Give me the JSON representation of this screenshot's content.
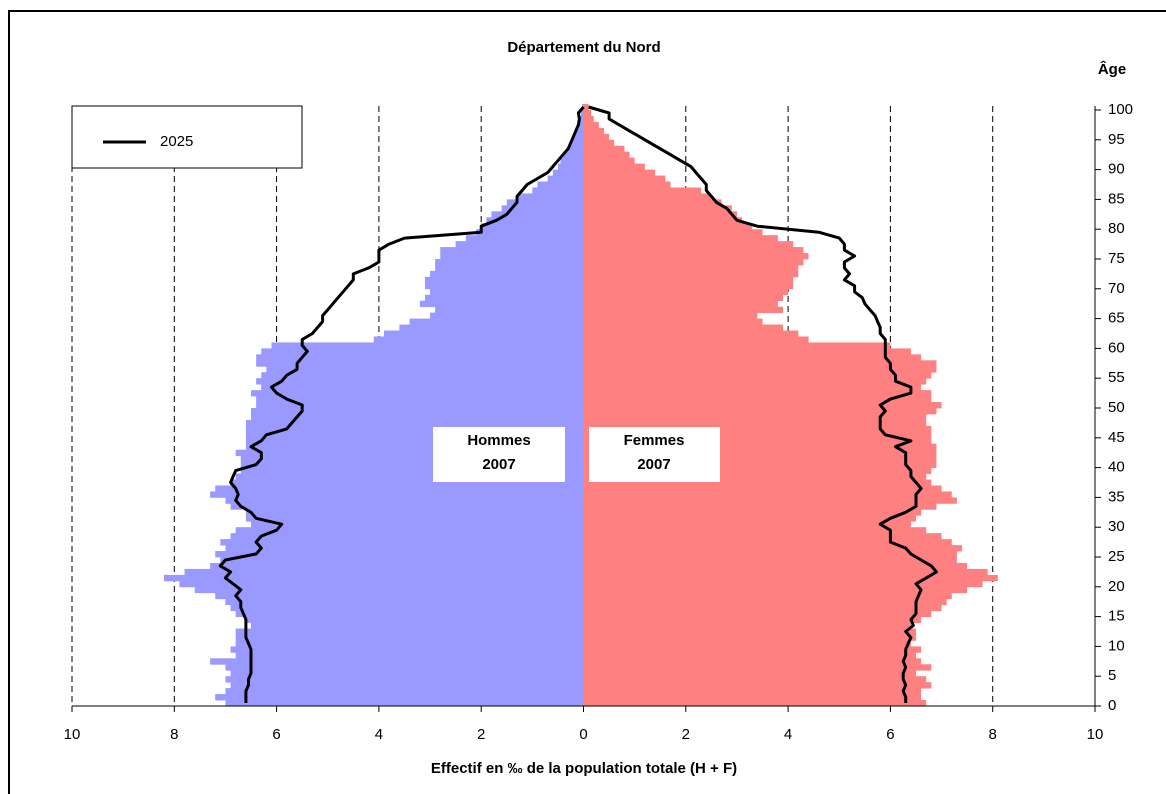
{
  "chart_data": {
    "type": "pyramid",
    "title": "Département du Nord",
    "x_label": "Effectif en ‰ de la population totale (H + F)",
    "y_label": "Âge",
    "xlim": [
      -10,
      10
    ],
    "xticks": [
      {
        "value": -10,
        "label": "10"
      },
      {
        "value": -8,
        "label": "8"
      },
      {
        "value": -6,
        "label": "6"
      },
      {
        "value": -4,
        "label": "4"
      },
      {
        "value": -2,
        "label": "2"
      },
      0,
      2,
      4,
      6,
      8,
      10
    ],
    "ylim": [
      0,
      100
    ],
    "yticks": [
      0,
      5,
      10,
      15,
      20,
      25,
      30,
      35,
      40,
      45,
      50,
      55,
      60,
      65,
      70,
      75,
      80,
      85,
      90,
      95,
      100
    ],
    "grid": true,
    "legend": "top-left",
    "bars": [
      {
        "name": "Hommes",
        "year": "2007",
        "side": "left",
        "color": "#9999ff",
        "values": [
          7.0,
          7.2,
          7.0,
          6.9,
          7.0,
          6.9,
          7.0,
          7.3,
          6.8,
          6.9,
          6.8,
          6.8,
          6.8,
          6.5,
          6.6,
          6.8,
          6.9,
          7.0,
          7.2,
          7.6,
          7.9,
          8.2,
          7.8,
          7.3,
          7.1,
          7.2,
          7.0,
          7.1,
          6.9,
          6.8,
          6.5,
          6.6,
          6.6,
          6.9,
          7.0,
          7.3,
          7.2,
          6.9,
          6.8,
          6.7,
          6.7,
          6.7,
          6.8,
          6.6,
          6.6,
          6.6,
          6.6,
          6.6,
          6.5,
          6.5,
          6.4,
          6.4,
          6.5,
          6.3,
          6.4,
          6.3,
          6.2,
          6.4,
          6.4,
          6.3,
          6.1,
          4.1,
          3.9,
          3.6,
          3.4,
          3.0,
          2.9,
          3.2,
          3.1,
          3.0,
          3.1,
          3.1,
          3.0,
          2.9,
          2.9,
          2.8,
          2.8,
          2.5,
          2.3,
          2.1,
          2.0,
          1.9,
          1.8,
          1.6,
          1.5,
          1.3,
          1.0,
          0.9,
          0.7,
          0.6,
          0.5,
          0.45,
          0.4,
          0.3,
          0.25,
          0.2,
          0.15,
          0.1,
          0.08,
          0.05,
          0.03
        ]
      },
      {
        "name": "Femmes",
        "year": "2007",
        "side": "right",
        "color": "#ff8080",
        "values": [
          6.7,
          6.6,
          6.6,
          6.8,
          6.7,
          6.5,
          6.8,
          6.6,
          6.5,
          6.6,
          6.4,
          6.5,
          6.5,
          6.4,
          6.6,
          6.8,
          7.0,
          7.1,
          7.2,
          7.5,
          7.8,
          8.1,
          7.9,
          7.5,
          7.3,
          7.3,
          7.4,
          7.2,
          7.0,
          6.7,
          6.4,
          6.5,
          6.6,
          6.9,
          7.3,
          7.2,
          7.0,
          6.8,
          6.7,
          6.8,
          6.9,
          6.9,
          6.9,
          6.9,
          6.8,
          6.8,
          6.8,
          6.7,
          6.7,
          6.9,
          7.0,
          6.8,
          6.8,
          6.6,
          6.7,
          6.8,
          6.9,
          6.9,
          6.6,
          6.4,
          6.0,
          4.4,
          4.2,
          3.9,
          3.5,
          3.4,
          3.9,
          3.8,
          3.9,
          4.0,
          4.1,
          4.1,
          4.2,
          4.2,
          4.3,
          4.4,
          4.3,
          4.1,
          3.8,
          3.5,
          3.3,
          3.1,
          3.0,
          2.9,
          2.7,
          2.5,
          2.3,
          1.7,
          1.6,
          1.4,
          1.2,
          1.0,
          0.9,
          0.8,
          0.6,
          0.5,
          0.4,
          0.3,
          0.2,
          0.15,
          0.1
        ]
      }
    ],
    "line": {
      "name": "2025",
      "color": "#000000",
      "series": [
        {
          "side": "left",
          "values": [
            6.6,
            6.6,
            6.6,
            6.55,
            6.55,
            6.5,
            6.5,
            6.5,
            6.5,
            6.5,
            6.55,
            6.6,
            6.6,
            6.6,
            6.6,
            6.65,
            6.7,
            6.7,
            6.8,
            6.7,
            6.85,
            7.0,
            6.9,
            7.1,
            7.0,
            6.4,
            6.3,
            6.4,
            6.3,
            6.0,
            5.9,
            6.4,
            6.5,
            6.7,
            6.8,
            6.75,
            6.8,
            6.9,
            6.85,
            6.8,
            6.4,
            6.3,
            6.3,
            6.5,
            6.3,
            6.2,
            5.8,
            5.7,
            5.6,
            5.5,
            5.5,
            5.8,
            6.0,
            6.1,
            5.9,
            5.8,
            5.6,
            5.6,
            5.5,
            5.4,
            5.5,
            5.5,
            5.3,
            5.2,
            5.1,
            5.1,
            5.0,
            4.9,
            4.8,
            4.7,
            4.6,
            4.5,
            4.5,
            4.2,
            4.0,
            4.0,
            4.0,
            3.8,
            3.5,
            2.0,
            2.0,
            1.7,
            1.5,
            1.4,
            1.3,
            1.3,
            1.2,
            1.1,
            0.9,
            0.7,
            0.6,
            0.5,
            0.4,
            0.3,
            0.25,
            0.2,
            0.15,
            0.1,
            0.08,
            0.1,
            0.0
          ]
        },
        {
          "side": "right",
          "values": [
            6.3,
            6.3,
            6.25,
            6.3,
            6.25,
            6.25,
            6.3,
            6.25,
            6.3,
            6.3,
            6.35,
            6.4,
            6.3,
            6.45,
            6.4,
            6.5,
            6.5,
            6.5,
            6.55,
            6.6,
            6.5,
            6.7,
            6.9,
            6.8,
            6.6,
            6.4,
            6.3,
            6.0,
            6.0,
            6.0,
            5.8,
            6.0,
            6.3,
            6.5,
            6.5,
            6.5,
            6.6,
            6.5,
            6.4,
            6.4,
            6.3,
            6.3,
            6.3,
            6.1,
            6.4,
            5.9,
            5.8,
            5.8,
            5.8,
            5.9,
            5.8,
            6.0,
            6.4,
            6.4,
            6.1,
            6.1,
            6.0,
            6.0,
            5.9,
            5.9,
            5.9,
            5.9,
            5.8,
            5.8,
            5.75,
            5.7,
            5.6,
            5.5,
            5.45,
            5.3,
            5.3,
            5.1,
            5.2,
            5.1,
            5.1,
            5.3,
            5.1,
            5.1,
            5.0,
            4.6,
            3.4,
            3.0,
            2.9,
            2.8,
            2.6,
            2.5,
            2.4,
            2.4,
            2.3,
            2.2,
            2.1,
            1.9,
            1.7,
            1.5,
            1.3,
            1.1,
            0.9,
            0.7,
            0.5,
            0.5,
            0.1
          ]
        }
      ]
    }
  }
}
